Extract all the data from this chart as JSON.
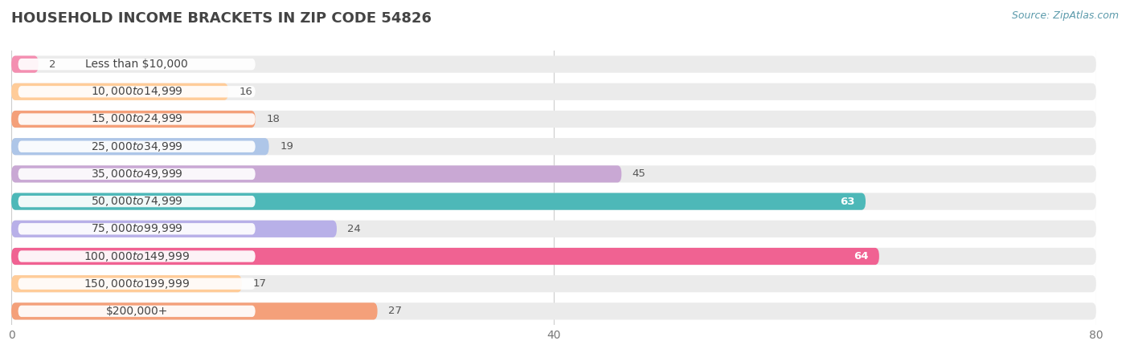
{
  "title": "HOUSEHOLD INCOME BRACKETS IN ZIP CODE 54826",
  "source": "Source: ZipAtlas.com",
  "categories": [
    "Less than $10,000",
    "$10,000 to $14,999",
    "$15,000 to $24,999",
    "$25,000 to $34,999",
    "$35,000 to $49,999",
    "$50,000 to $74,999",
    "$75,000 to $99,999",
    "$100,000 to $149,999",
    "$150,000 to $199,999",
    "$200,000+"
  ],
  "values": [
    2,
    16,
    18,
    19,
    45,
    63,
    24,
    64,
    17,
    27
  ],
  "bar_colors": [
    "#f48fb1",
    "#ffcc99",
    "#f4a07a",
    "#aec6e8",
    "#c9a8d4",
    "#4db8b8",
    "#b8b0e8",
    "#f06292",
    "#ffcc99",
    "#f4a07a"
  ],
  "xlim": [
    0,
    80
  ],
  "xticks": [
    0,
    40,
    80
  ],
  "background_color": "#ffffff",
  "bar_background_color": "#ebebeb",
  "label_bg_color": "#ffffff",
  "title_fontsize": 13,
  "label_fontsize": 10,
  "value_fontsize": 9.5,
  "source_fontsize": 9,
  "source_color": "#5b9aab",
  "title_color": "#444444",
  "label_color": "#444444",
  "value_color_outside": "#555555",
  "value_color_inside": "#ffffff"
}
